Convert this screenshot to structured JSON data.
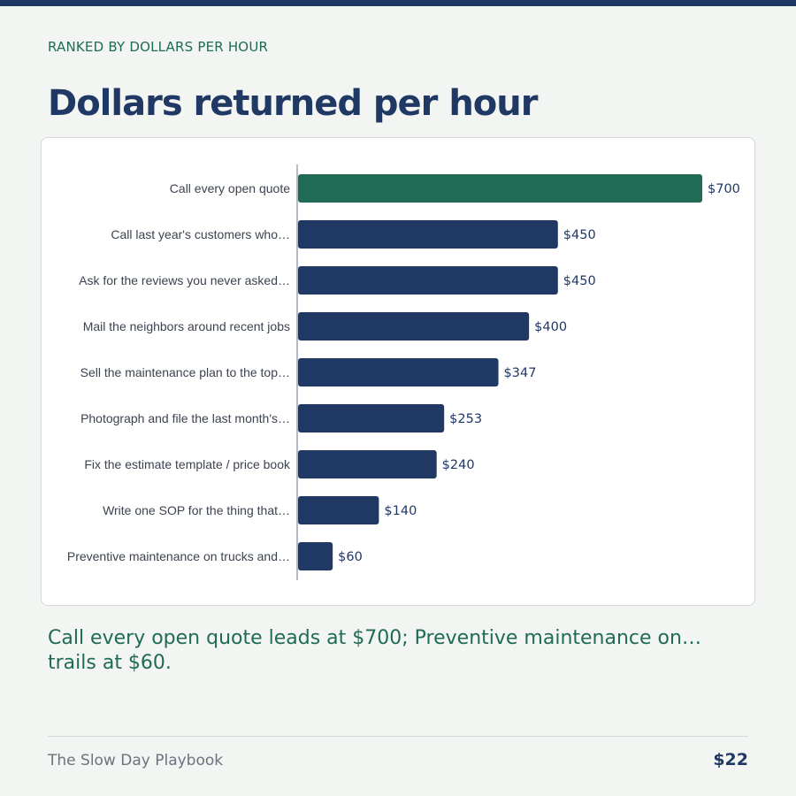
{
  "header": {
    "eyebrow": "RANKED BY DOLLARS PER HOUR",
    "title": "Dollars returned per hour"
  },
  "summary": "Call every open quote leads at $700; Preventive maintenance on… trails at $60.",
  "footer": {
    "brand": "The Slow Day Playbook",
    "price": "$22"
  },
  "colors": {
    "highlight": "#1f6b55",
    "bar": "#1f3864",
    "background": "#f3f5f2"
  },
  "chart_data": {
    "type": "bar",
    "orientation": "horizontal",
    "categories": [
      "Call every open quote",
      "Call last year's customers who…",
      "Ask for the reviews you never asked…",
      "Mail the neighbors around recent jobs",
      "Sell the maintenance plan to the top…",
      "Photograph and file the last month's…",
      "Fix the estimate template / price book",
      "Write one SOP for the thing that…",
      "Preventive maintenance on trucks and…"
    ],
    "values": [
      700,
      450,
      450,
      400,
      347,
      253,
      240,
      140,
      60
    ],
    "value_labels": [
      "$700",
      "$450",
      "$450",
      "$400",
      "$347",
      "$253",
      "$240",
      "$140",
      "$60"
    ],
    "highlight_index": 0,
    "xlim": [
      0,
      700
    ],
    "grid": false
  }
}
